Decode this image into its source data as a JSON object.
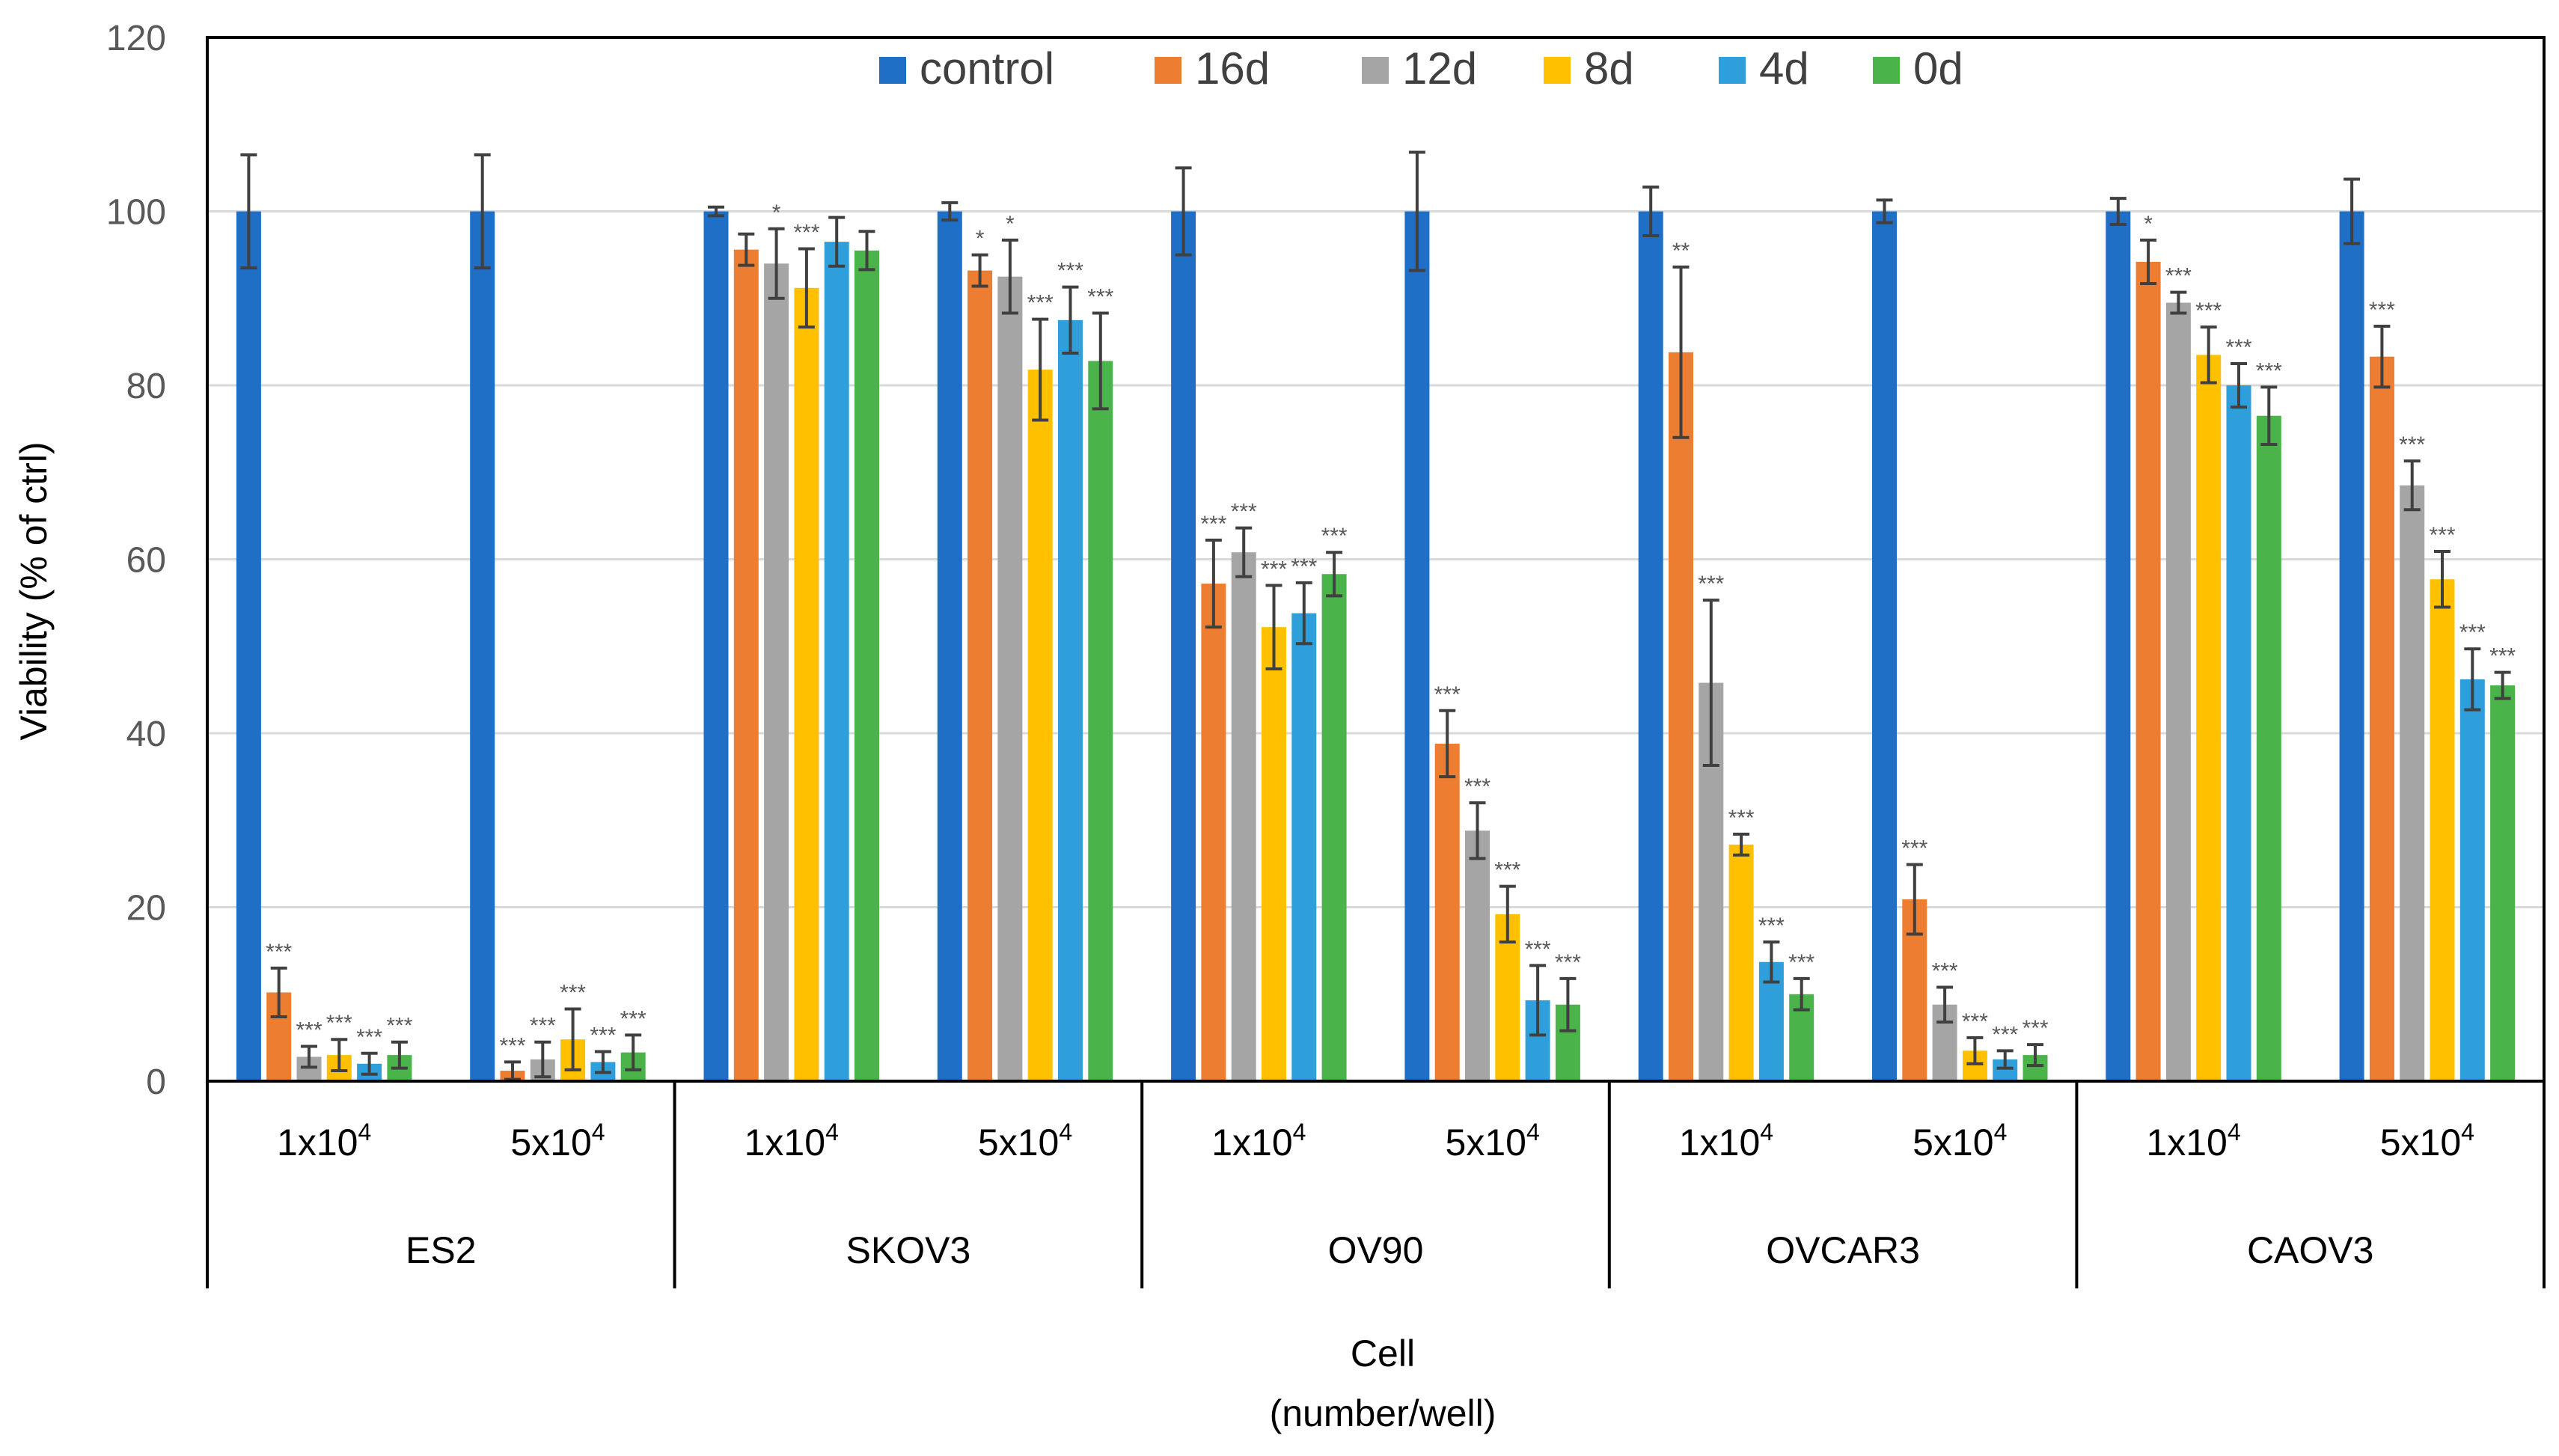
{
  "chart_data": {
    "type": "bar",
    "title": "",
    "ylabel": "Viability (% of ctrl)",
    "xlabel": [
      "Cell",
      "(number/well)"
    ],
    "ylim": [
      0,
      120
    ],
    "yticks": [
      "0",
      "20",
      "40",
      "60",
      "80",
      "100",
      "120"
    ],
    "grid": true,
    "legend_position": "top-center",
    "cell_lines": [
      "ES2",
      "SKOV3",
      "OV90",
      "OVCAR3",
      "CAOV3"
    ],
    "densities": [
      {
        "base": "1x10",
        "exp": "4"
      },
      {
        "base": "5x10",
        "exp": "4"
      }
    ],
    "series": [
      {
        "name": "control",
        "color": "#1f6fc6",
        "values": [
          100,
          100,
          100,
          100,
          100,
          100,
          100,
          100,
          100,
          100
        ],
        "errors": [
          6.5,
          6.5,
          0.5,
          1,
          5,
          6.8,
          2.8,
          1.3,
          1.5,
          3.7
        ],
        "sig": [
          "",
          "",
          "",
          "",
          "",
          "",
          "",
          "",
          "",
          ""
        ]
      },
      {
        "name": "16d",
        "color": "#ed7d31",
        "values": [
          10.2,
          1.2,
          95.6,
          93.2,
          57.2,
          38.8,
          83.8,
          20.9,
          94.2,
          83.3
        ],
        "errors": [
          2.8,
          1,
          1.8,
          1.8,
          5,
          3.8,
          9.8,
          4,
          2.5,
          3.5
        ],
        "sig": [
          "***",
          "***",
          "",
          "*",
          "***",
          "***",
          "**",
          "***",
          "*",
          "***"
        ]
      },
      {
        "name": "12d",
        "color": "#a5a5a5",
        "values": [
          2.8,
          2.5,
          94,
          92.5,
          60.8,
          28.8,
          45.8,
          8.8,
          89.5,
          68.5
        ],
        "errors": [
          1.2,
          2,
          4,
          4.2,
          2.8,
          3.2,
          9.5,
          2,
          1.2,
          2.8
        ],
        "sig": [
          "***",
          "***",
          "*",
          "*",
          "***",
          "***",
          "***",
          "***",
          "***",
          "***"
        ]
      },
      {
        "name": "8d",
        "color": "#ffc000",
        "values": [
          3,
          4.8,
          91.2,
          81.8,
          52.2,
          19.2,
          27.2,
          3.5,
          83.5,
          57.7
        ],
        "errors": [
          1.8,
          3.5,
          4.5,
          5.8,
          4.8,
          3.2,
          1.2,
          1.5,
          3.2,
          3.2
        ],
        "sig": [
          "***",
          "***",
          "***",
          "***",
          "***",
          "***",
          "***",
          "***",
          "***",
          "***"
        ]
      },
      {
        "name": "4d",
        "color": "#2e9fdb",
        "values": [
          2,
          2.2,
          96.5,
          87.5,
          53.8,
          9.3,
          13.7,
          2.5,
          80,
          46.2
        ],
        "errors": [
          1.2,
          1.2,
          2.8,
          3.8,
          3.5,
          4,
          2.3,
          1,
          2.5,
          3.5
        ],
        "sig": [
          "***",
          "***",
          "",
          "***",
          "***",
          "***",
          "***",
          "***",
          "***",
          "***"
        ]
      },
      {
        "name": "0d",
        "color": "#4ab34a",
        "values": [
          3,
          3.3,
          95.5,
          82.8,
          58.3,
          8.8,
          10,
          3,
          76.5,
          45.5
        ],
        "errors": [
          1.5,
          2,
          2.2,
          5.5,
          2.5,
          3,
          1.8,
          1.2,
          3.3,
          1.5
        ],
        "sig": [
          "***",
          "***",
          "",
          "***",
          "***",
          "***",
          "***",
          "***",
          "***",
          "***"
        ]
      }
    ]
  }
}
